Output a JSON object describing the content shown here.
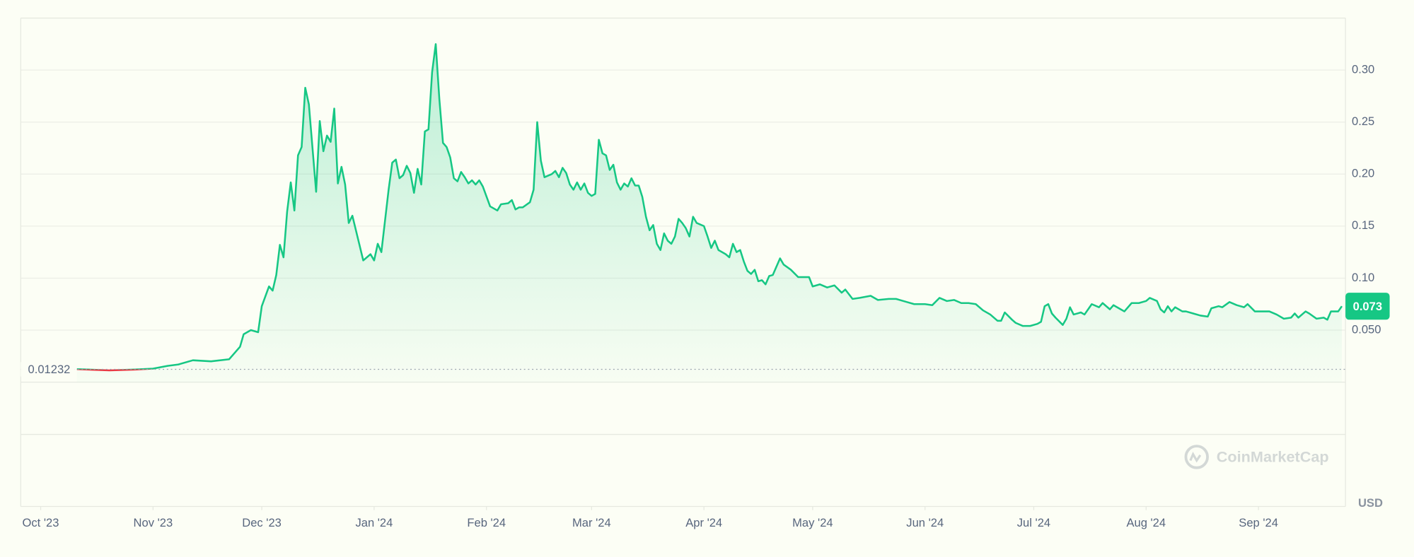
{
  "chart_data": {
    "type": "area",
    "x": [
      10,
      19,
      26,
      31,
      35,
      38,
      42,
      47,
      52,
      55,
      56,
      58,
      60,
      61,
      63,
      64,
      65,
      66,
      67,
      68,
      69,
      70,
      71,
      72,
      73,
      74,
      76,
      77,
      78,
      79,
      80,
      81,
      82,
      83,
      84,
      85,
      86,
      89,
      91,
      92,
      93,
      94,
      96,
      97,
      98,
      99,
      100,
      101,
      102,
      103,
      104,
      105,
      106,
      107,
      108,
      109,
      110,
      111,
      112,
      113,
      114,
      115,
      116,
      117,
      118,
      119,
      120,
      121,
      122,
      124,
      126,
      127,
      129,
      130,
      131,
      132,
      133,
      135,
      136,
      137,
      138,
      139,
      141,
      142,
      143,
      144,
      145,
      146,
      147,
      148,
      149,
      150,
      151,
      152,
      153,
      154,
      155,
      156,
      157,
      158,
      159,
      160,
      161,
      162,
      163,
      164,
      165,
      166,
      167,
      168,
      169,
      170,
      171,
      172,
      173,
      174,
      175,
      176,
      177,
      178,
      179,
      180,
      181,
      183,
      184,
      185,
      186,
      187,
      189,
      190,
      191,
      192,
      193,
      194,
      195,
      196,
      197,
      198,
      199,
      200,
      201,
      202,
      203,
      204,
      205,
      207,
      209,
      212,
      213,
      215,
      217,
      219,
      221,
      222,
      224,
      226,
      229,
      231,
      234,
      236,
      239,
      241,
      244,
      246,
      248,
      250,
      252,
      254,
      256,
      258,
      260,
      262,
      264,
      265,
      266,
      268,
      269,
      271,
      273,
      275,
      276,
      277,
      278,
      279,
      280,
      282,
      283,
      284,
      285,
      287,
      288,
      290,
      292,
      293,
      295,
      296,
      298,
      299,
      301,
      303,
      305,
      306,
      308,
      309,
      310,
      311,
      312,
      313,
      315,
      316,
      318,
      320,
      322,
      323,
      325,
      326,
      328,
      330,
      332,
      333,
      335,
      337,
      339,
      341,
      343,
      345,
      346,
      347,
      349,
      350,
      352,
      354,
      355,
      356,
      358,
      359
    ],
    "values": [
      0.0125,
      0.0113,
      0.0121,
      0.013,
      0.0156,
      0.017,
      0.021,
      0.02,
      0.022,
      0.034,
      0.046,
      0.05,
      0.048,
      0.073,
      0.092,
      0.088,
      0.103,
      0.132,
      0.12,
      0.164,
      0.192,
      0.165,
      0.218,
      0.226,
      0.283,
      0.267,
      0.183,
      0.251,
      0.222,
      0.237,
      0.231,
      0.263,
      0.191,
      0.207,
      0.19,
      0.153,
      0.16,
      0.117,
      0.123,
      0.117,
      0.133,
      0.125,
      0.185,
      0.211,
      0.214,
      0.196,
      0.199,
      0.208,
      0.201,
      0.182,
      0.205,
      0.19,
      0.241,
      0.243,
      0.298,
      0.325,
      0.272,
      0.23,
      0.226,
      0.216,
      0.196,
      0.193,
      0.202,
      0.197,
      0.191,
      0.194,
      0.19,
      0.194,
      0.188,
      0.169,
      0.165,
      0.171,
      0.172,
      0.175,
      0.166,
      0.168,
      0.168,
      0.173,
      0.185,
      0.25,
      0.213,
      0.197,
      0.2,
      0.203,
      0.197,
      0.206,
      0.201,
      0.19,
      0.185,
      0.192,
      0.185,
      0.191,
      0.182,
      0.179,
      0.181,
      0.233,
      0.22,
      0.218,
      0.204,
      0.209,
      0.192,
      0.185,
      0.191,
      0.188,
      0.196,
      0.189,
      0.189,
      0.178,
      0.159,
      0.146,
      0.151,
      0.133,
      0.127,
      0.143,
      0.136,
      0.133,
      0.14,
      0.157,
      0.153,
      0.148,
      0.14,
      0.159,
      0.153,
      0.15,
      0.14,
      0.129,
      0.136,
      0.127,
      0.123,
      0.12,
      0.133,
      0.125,
      0.127,
      0.116,
      0.107,
      0.104,
      0.108,
      0.097,
      0.098,
      0.094,
      0.102,
      0.103,
      0.111,
      0.119,
      0.113,
      0.108,
      0.101,
      0.101,
      0.092,
      0.094,
      0.091,
      0.093,
      0.086,
      0.089,
      0.08,
      0.081,
      0.083,
      0.079,
      0.08,
      0.08,
      0.077,
      0.075,
      0.075,
      0.074,
      0.081,
      0.078,
      0.079,
      0.076,
      0.076,
      0.075,
      0.069,
      0.065,
      0.059,
      0.059,
      0.067,
      0.06,
      0.057,
      0.054,
      0.054,
      0.056,
      0.058,
      0.073,
      0.075,
      0.066,
      0.062,
      0.055,
      0.061,
      0.072,
      0.065,
      0.067,
      0.065,
      0.075,
      0.072,
      0.076,
      0.07,
      0.074,
      0.07,
      0.068,
      0.076,
      0.076,
      0.078,
      0.081,
      0.078,
      0.07,
      0.067,
      0.073,
      0.068,
      0.072,
      0.068,
      0.068,
      0.066,
      0.064,
      0.063,
      0.071,
      0.073,
      0.072,
      0.077,
      0.074,
      0.072,
      0.075,
      0.068,
      0.068,
      0.068,
      0.065,
      0.061,
      0.062,
      0.066,
      0.062,
      0.068,
      0.066,
      0.061,
      0.062,
      0.06,
      0.068,
      0.068,
      0.073
    ],
    "color": "#16c784",
    "down_color": "#ea3943",
    "baseline": 0.01232,
    "current_price": 0.073,
    "currency": "USD",
    "watermark": "CoinMarketCap",
    "xlim": [
      -5.5,
      360
    ],
    "xticks": [
      {
        "value": 0,
        "label": "Oct '23"
      },
      {
        "value": 31,
        "label": "Nov '23"
      },
      {
        "value": 61,
        "label": "Dec '23"
      },
      {
        "value": 92,
        "label": "Jan '24"
      },
      {
        "value": 123,
        "label": "Feb '24"
      },
      {
        "value": 152,
        "label": "Mar '24"
      },
      {
        "value": 183,
        "label": "Apr '24"
      },
      {
        "value": 213,
        "label": "May '24"
      },
      {
        "value": 244,
        "label": "Jun '24"
      },
      {
        "value": 274,
        "label": "Jul '24"
      },
      {
        "value": 305,
        "label": "Aug '24"
      },
      {
        "value": 336,
        "label": "Sep '24"
      }
    ],
    "ylim": [
      0,
      0.35
    ],
    "yticks": [
      {
        "value": 0.05,
        "label": "0.050"
      },
      {
        "value": 0.1,
        "label": "0.10"
      },
      0.15,
      {
        "value": 0.2,
        "label": "0.20"
      },
      0.25,
      {
        "value": 0.3,
        "label": "0.30"
      }
    ],
    "grid": true
  }
}
